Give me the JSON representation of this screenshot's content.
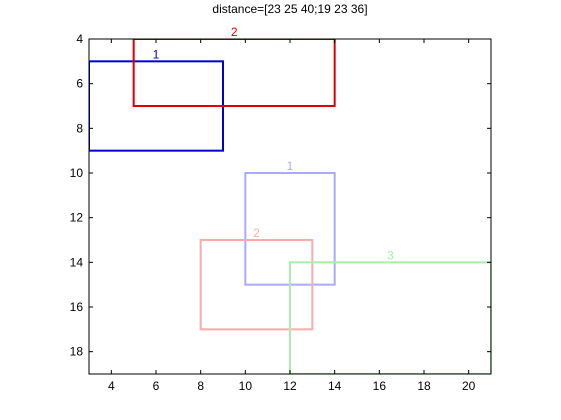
{
  "chart_data": {
    "type": "rectangles",
    "title": "distance=[23 25 40;19 23 36]",
    "xlabel": "",
    "ylabel": "",
    "xlim": [
      3,
      21
    ],
    "ylim": [
      4,
      19
    ],
    "y_reversed": true,
    "grid": false,
    "x_ticks": [
      4,
      6,
      8,
      10,
      12,
      14,
      16,
      18,
      20
    ],
    "y_ticks": [
      4,
      6,
      8,
      10,
      12,
      14,
      16,
      18
    ],
    "rects": [
      {
        "label": "1",
        "x": 3,
        "y": 5,
        "width": 6,
        "height": 4,
        "color": "#0000cc"
      },
      {
        "label": "2",
        "x": 5,
        "y": 4,
        "width": 9,
        "height": 3,
        "color": "#dd0000"
      },
      {
        "label": "1",
        "x": 10,
        "y": 10,
        "width": 4,
        "height": 5,
        "color": "#aaaaff"
      },
      {
        "label": "2",
        "x": 8,
        "y": 13,
        "width": 5,
        "height": 4,
        "color": "#ffaaaa"
      },
      {
        "label": "3",
        "x": 12,
        "y": 14,
        "width": 9,
        "height": 5,
        "color": "#aaeeaa"
      }
    ]
  }
}
